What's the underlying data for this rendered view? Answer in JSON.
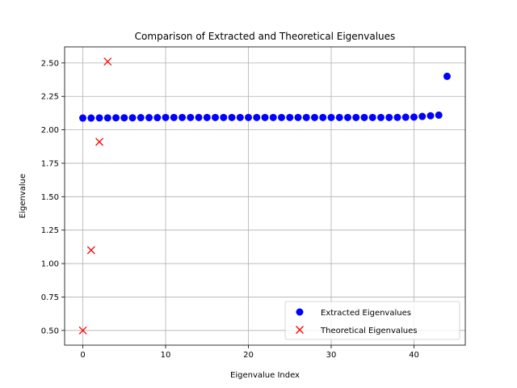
{
  "chart_data": {
    "type": "scatter",
    "title": "Comparison of Extracted and Theoretical Eigenvalues",
    "xlabel": "Eigenvalue Index",
    "ylabel": "Eigenvalue",
    "xlim": [
      -2.2,
      46.2
    ],
    "ylim": [
      0.39,
      2.62
    ],
    "x_ticks": [
      0,
      10,
      20,
      30,
      40
    ],
    "x_tick_labels": [
      "0",
      "10",
      "20",
      "30",
      "40"
    ],
    "y_ticks": [
      0.5,
      0.75,
      1.0,
      1.25,
      1.5,
      1.75,
      2.0,
      2.25,
      2.5
    ],
    "y_tick_labels": [
      "0.50",
      "0.75",
      "1.00",
      "1.25",
      "1.50",
      "1.75",
      "2.00",
      "2.25",
      "2.50"
    ],
    "grid": true,
    "legend_position": "lower-right",
    "series": [
      {
        "name": "Extracted Eigenvalues",
        "marker": "circle",
        "color": "#0000ff",
        "x": [
          0,
          1,
          2,
          3,
          4,
          5,
          6,
          7,
          8,
          9,
          10,
          11,
          12,
          13,
          14,
          15,
          16,
          17,
          18,
          19,
          20,
          21,
          22,
          23,
          24,
          25,
          26,
          27,
          28,
          29,
          30,
          31,
          32,
          33,
          34,
          35,
          36,
          37,
          38,
          39,
          40,
          41,
          42,
          43,
          44
        ],
        "y": [
          2.088,
          2.088,
          2.089,
          2.089,
          2.09,
          2.09,
          2.09,
          2.091,
          2.091,
          2.091,
          2.092,
          2.092,
          2.092,
          2.092,
          2.092,
          2.092,
          2.092,
          2.092,
          2.092,
          2.092,
          2.092,
          2.092,
          2.092,
          2.092,
          2.092,
          2.092,
          2.092,
          2.092,
          2.092,
          2.092,
          2.092,
          2.092,
          2.092,
          2.092,
          2.092,
          2.092,
          2.092,
          2.092,
          2.093,
          2.094,
          2.095,
          2.1,
          2.105,
          2.11,
          2.4
        ]
      },
      {
        "name": "Theoretical Eigenvalues",
        "marker": "x",
        "color": "#ff0000",
        "x": [
          0,
          1,
          2,
          3
        ],
        "y": [
          0.5,
          1.1,
          1.91,
          2.51
        ]
      }
    ]
  }
}
